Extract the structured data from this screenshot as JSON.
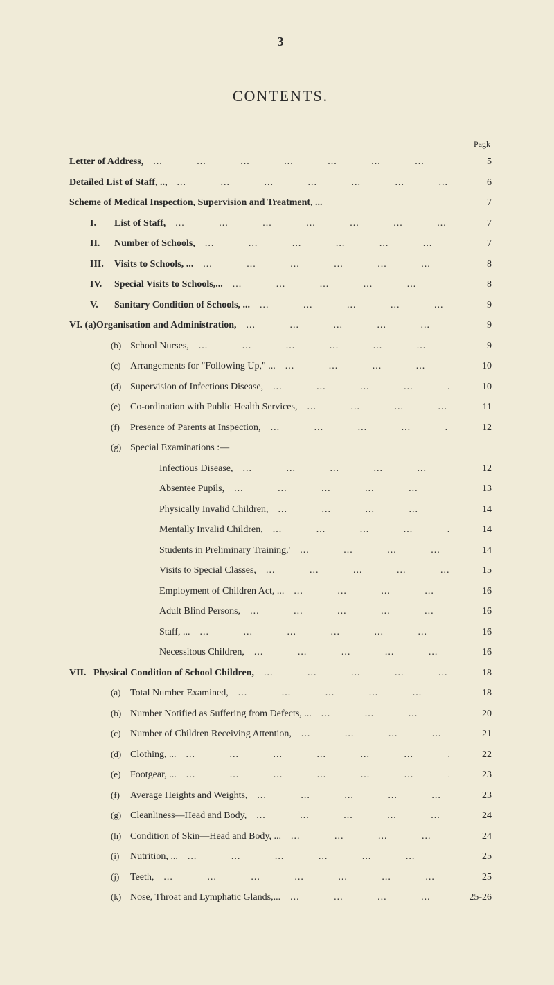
{
  "page_number_top": "3",
  "title": "CONTENTS.",
  "page_header_label": "Pagk",
  "entries": [
    {
      "indent": 0,
      "marker": "",
      "text": "Letter of Address,",
      "bold": true,
      "page": "5"
    },
    {
      "indent": 0,
      "marker": "",
      "text": "Detailed List of Staff,   ..,",
      "bold": true,
      "page": "6"
    },
    {
      "indent": 0,
      "marker": "",
      "text": "Scheme of Medical Inspection, Supervision and Treatment, ...",
      "bold": true,
      "page": "7",
      "nolead": true
    },
    {
      "indent": 1,
      "marker": "I.",
      "text": "List of Staff,",
      "bold": true,
      "page": "7"
    },
    {
      "indent": 1,
      "marker": "II.",
      "text": "Number of Schools,",
      "bold": true,
      "page": "7"
    },
    {
      "indent": 1,
      "marker": "III.",
      "text": "Visits to Schools, ...",
      "bold": true,
      "page": "8"
    },
    {
      "indent": 1,
      "marker": "IV.",
      "text": "Special Visits to Schools,...",
      "bold": true,
      "page": "8"
    },
    {
      "indent": 1,
      "marker": "V.",
      "text": "Sanitary Condition of Schools, ...",
      "bold": true,
      "page": "9"
    },
    {
      "indent": 0,
      "marker": "VI. (a)",
      "text": "Organisation and Administration,",
      "bold": true,
      "page": "9"
    },
    {
      "indent": 2,
      "marker": "(b)",
      "text": "School Nurses,",
      "bold": false,
      "page": "9"
    },
    {
      "indent": 2,
      "marker": "(c)",
      "text": "Arrangements for \"Following Up,\"   ...",
      "bold": false,
      "page": "10"
    },
    {
      "indent": 2,
      "marker": "(d)",
      "text": "Supervision of Infectious Disease,",
      "bold": false,
      "page": "10"
    },
    {
      "indent": 2,
      "marker": "(e)",
      "text": "Co-ordination with Public Health Services,",
      "bold": false,
      "page": "11"
    },
    {
      "indent": 2,
      "marker": "(f)",
      "text": "Presence of Parents at Inspection,",
      "bold": false,
      "page": "12"
    },
    {
      "indent": 2,
      "marker": "(g)",
      "text": "Special Examinations :—",
      "bold": false,
      "page": "",
      "nolead": true
    },
    {
      "indent": 3,
      "marker": "",
      "text": "Infectious Disease,",
      "bold": false,
      "page": "12"
    },
    {
      "indent": 3,
      "marker": "",
      "text": "Absentee Pupils,",
      "bold": false,
      "page": "13"
    },
    {
      "indent": 3,
      "marker": "",
      "text": "Physically Invalid Children,",
      "bold": false,
      "page": "14"
    },
    {
      "indent": 3,
      "marker": "",
      "text": "Mentally Invalid Children,",
      "bold": false,
      "page": "14"
    },
    {
      "indent": 3,
      "marker": "",
      "text": "Students in Preliminary Training,'",
      "bold": false,
      "page": "14"
    },
    {
      "indent": 3,
      "marker": "",
      "text": "Visits to Special Classes,",
      "bold": false,
      "page": "15"
    },
    {
      "indent": 3,
      "marker": "",
      "text": "Employment of Children Act,   ...",
      "bold": false,
      "page": "16"
    },
    {
      "indent": 3,
      "marker": "",
      "text": "Adult Blind Persons,",
      "bold": false,
      "page": "16"
    },
    {
      "indent": 3,
      "marker": "",
      "text": "Staff, ...",
      "bold": false,
      "page": "16"
    },
    {
      "indent": 3,
      "marker": "",
      "text": "Necessitous Children,",
      "bold": false,
      "page": "16"
    },
    {
      "indent": 0,
      "marker": "VII.",
      "text": "Physical Condition of School Children,",
      "bold": true,
      "page": "18"
    },
    {
      "indent": 2,
      "marker": "(a)",
      "text": "Total Number Examined,",
      "bold": false,
      "page": "18"
    },
    {
      "indent": 2,
      "marker": "(b)",
      "text": "Number Notified as Suffering from Defects,   ...",
      "bold": false,
      "page": "20"
    },
    {
      "indent": 2,
      "marker": "(c)",
      "text": "Number of Children Receiving Attention,",
      "bold": false,
      "page": "21"
    },
    {
      "indent": 2,
      "marker": "(d)",
      "text": "Clothing,   ...",
      "bold": false,
      "page": "22"
    },
    {
      "indent": 2,
      "marker": "(e)",
      "text": "Footgear, ...",
      "bold": false,
      "page": "23"
    },
    {
      "indent": 2,
      "marker": "(f)",
      "text": "Average Heights and Weights,",
      "bold": false,
      "page": "23"
    },
    {
      "indent": 2,
      "marker": "(g)",
      "text": "Cleanliness—Head and Body,",
      "bold": false,
      "page": "24"
    },
    {
      "indent": 2,
      "marker": "(h)",
      "text": "Condition of Skin—Head and Body, ...",
      "bold": false,
      "page": "24"
    },
    {
      "indent": 2,
      "marker": "(i)",
      "text": "Nutrition, ...",
      "bold": false,
      "page": "25"
    },
    {
      "indent": 2,
      "marker": "(j)",
      "text": "Teeth,",
      "bold": false,
      "page": "25"
    },
    {
      "indent": 2,
      "marker": "(k)",
      "text": "Nose, Throat and Lymphatic Glands,...",
      "bold": false,
      "page": "25-26"
    }
  ]
}
